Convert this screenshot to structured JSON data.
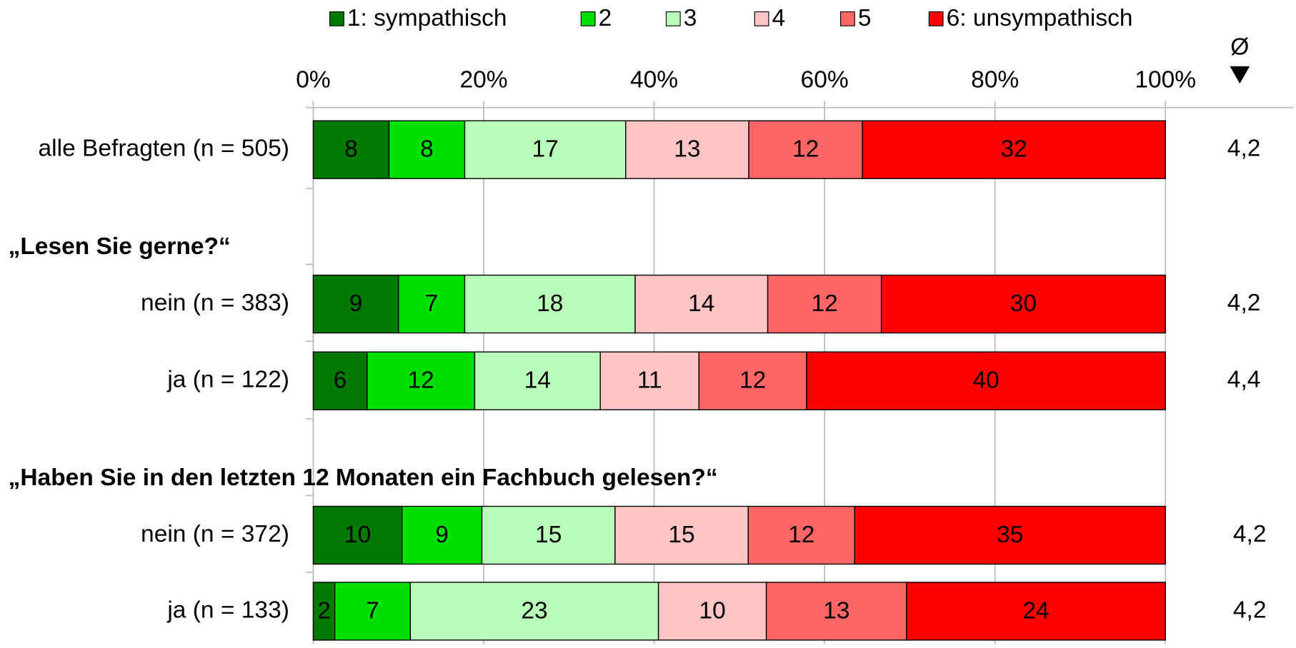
{
  "chart_data": {
    "type": "bar",
    "orientation": "horizontal",
    "stacking": "percent",
    "categories": [
      "alle Befragten (n = 505)",
      "„Lesen Sie gerne?“",
      "nein (n = 383)",
      "ja (n = 122)",
      "„Haben Sie in den letzten 12 Monaten ein Fachbuch gelesen?“",
      "nein (n = 372)",
      "ja (n = 133)"
    ],
    "series": [
      {
        "name": "1: sympathisch",
        "color": "#007a00",
        "values": [
          8,
          null,
          9,
          6,
          null,
          10,
          2
        ]
      },
      {
        "name": "2",
        "color": "#00e000",
        "values": [
          8,
          null,
          7,
          12,
          null,
          9,
          7
        ]
      },
      {
        "name": "3",
        "color": "#b9ffb9",
        "values": [
          17,
          null,
          18,
          14,
          null,
          15,
          23
        ]
      },
      {
        "name": "4",
        "color": "#ffc5c5",
        "values": [
          13,
          null,
          14,
          11,
          null,
          15,
          10
        ]
      },
      {
        "name": "5",
        "color": "#ff6666",
        "values": [
          12,
          null,
          12,
          12,
          null,
          12,
          13
        ]
      },
      {
        "name": "6: unsympathisch",
        "color": "#ff0000",
        "values": [
          32,
          null,
          30,
          40,
          null,
          35,
          24
        ]
      }
    ],
    "average_header": "Ø",
    "averages": [
      "4,2",
      null,
      "4,2",
      "4,4",
      null,
      "4,2",
      "4,2"
    ],
    "xlim": [
      0,
      100
    ],
    "xticks": [
      {
        "value": 0,
        "label": "0%"
      },
      {
        "value": 20,
        "label": "20%"
      },
      {
        "value": 40,
        "label": "40%"
      },
      {
        "value": 60,
        "label": "60%"
      },
      {
        "value": 80,
        "label": "80%"
      },
      {
        "value": 100,
        "label": "100%"
      }
    ],
    "grid": true,
    "legend": "top"
  }
}
